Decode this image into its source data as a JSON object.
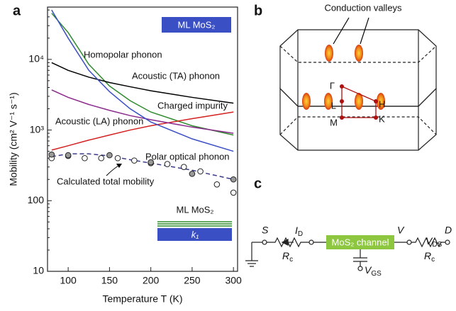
{
  "panels": [
    "a",
    "b",
    "c"
  ],
  "chart_data": {
    "type": "line",
    "xlabel": "Temperature T (K)",
    "ylabel": "Mobility (cm² V⁻¹ s⁻¹)",
    "xlim": [
      75,
      305
    ],
    "xticks": [
      100,
      150,
      200,
      250,
      300
    ],
    "ylim": [
      10,
      55000
    ],
    "log_y": true,
    "yticks": [
      10,
      100,
      {
        "value": 1000,
        "label": "10³"
      },
      {
        "value": 10000,
        "label": "10⁴"
      }
    ],
    "badge": "ML MoS₂",
    "layer_label": "ML MoS₂",
    "layer_k": "k₁",
    "series": [
      {
        "name": "Homopolar phonon",
        "color": "#2e8b2e",
        "x": [
          80,
          100,
          125,
          150,
          175,
          200,
          250,
          300
        ],
        "values": [
          45000,
          24000,
          8500,
          4200,
          2600,
          1800,
          1150,
          850
        ]
      },
      {
        "name": "Acoustic (TA) phonon",
        "color": "#000000",
        "x": [
          80,
          100,
          125,
          150,
          175,
          200,
          250,
          300
        ],
        "values": [
          9000,
          7000,
          5600,
          4700,
          4100,
          3600,
          2900,
          2400
        ]
      },
      {
        "name": "Charged impurity",
        "color": "#d42020",
        "x": [
          80,
          100,
          125,
          150,
          175,
          200,
          250,
          300
        ],
        "values": [
          520,
          600,
          720,
          850,
          1000,
          1150,
          1450,
          1800
        ]
      },
      {
        "name": "Acoustic (LA) phonon",
        "color": "#8b2a8b",
        "x": [
          80,
          100,
          125,
          150,
          175,
          200,
          250,
          300
        ],
        "values": [
          3700,
          2900,
          2300,
          1900,
          1600,
          1400,
          1100,
          900
        ]
      },
      {
        "name": "Polar optical phonon",
        "color": "#3a4fc4",
        "x": [
          80,
          100,
          125,
          150,
          175,
          200,
          250,
          300
        ],
        "values": [
          50000,
          20000,
          7000,
          3500,
          2000,
          1300,
          750,
          500
        ]
      },
      {
        "name": "Calculated total mobility",
        "color": "#3a3a8a",
        "dashed": true,
        "x": [
          80,
          100,
          125,
          150,
          175,
          200,
          250,
          300
        ],
        "values": [
          420,
          460,
          460,
          430,
          380,
          340,
          270,
          200
        ]
      },
      {
        "type": "scatter",
        "color": "#222222",
        "fill": "#ffffff",
        "x": [
          80,
          100,
          120,
          140,
          160,
          180,
          200,
          220,
          240,
          260,
          280,
          300
        ],
        "values": [
          400,
          430,
          400,
          400,
          400,
          370,
          340,
          330,
          300,
          260,
          170,
          130
        ]
      },
      {
        "type": "scatter",
        "color": "#222222",
        "fill": "#999999",
        "x": [
          80,
          100,
          150,
          200,
          250,
          300
        ],
        "values": [
          450,
          440,
          440,
          350,
          240,
          200
        ]
      }
    ]
  },
  "bz_diagram": {
    "title": "Conduction valleys",
    "points": [
      "Γ",
      "L",
      "M",
      "H",
      "K"
    ]
  },
  "circuit": {
    "source": "S",
    "drain": "D",
    "channel": "MoS₂ channel",
    "voltage": "V",
    "current": {
      "main": "I",
      "sub": "D"
    },
    "r_left": {
      "main": "R",
      "sub": "c"
    },
    "r_right": {
      "main": "R",
      "sub": "c"
    },
    "vds": {
      "main": "V",
      "sub": "DS"
    },
    "vgs": {
      "main": "V",
      "sub": "GS"
    }
  }
}
